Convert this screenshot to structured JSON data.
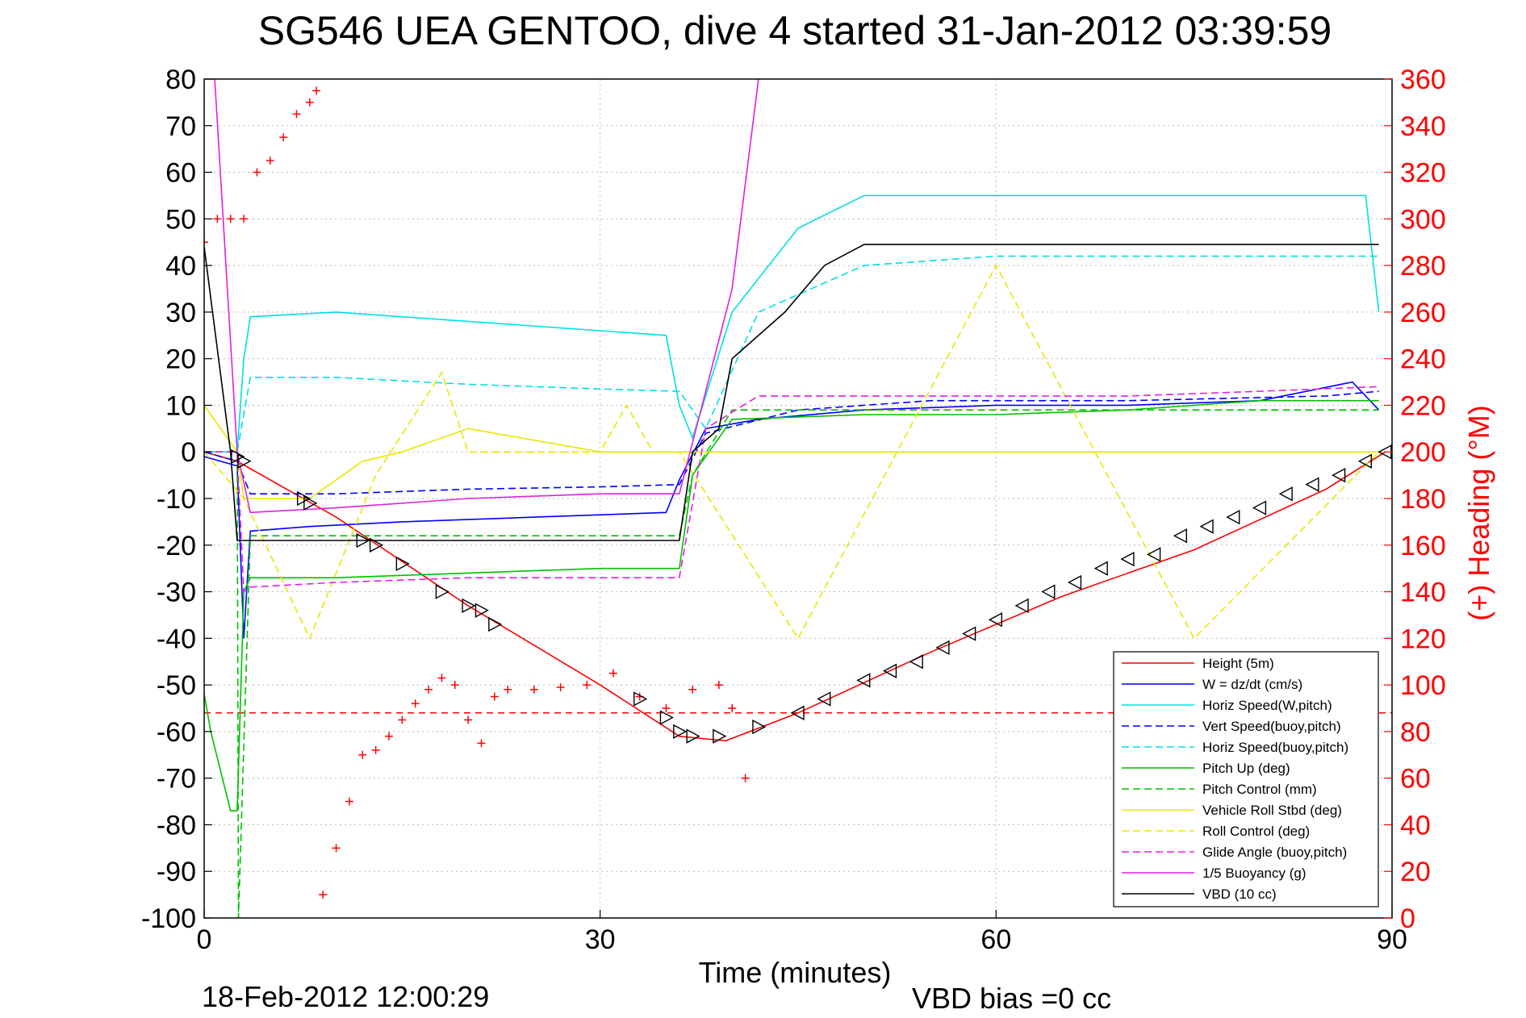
{
  "chart_data": {
    "type": "line",
    "title": "SG546 UEA GENTOO, dive 4 started 31-Jan-2012 03:39:59",
    "xlabel": "Time (minutes)",
    "ylabel_right": "(+) Heading (°M)",
    "xlim": [
      0,
      90
    ],
    "ylim": [
      -100,
      80
    ],
    "ylim_right": [
      0,
      360
    ],
    "x_ticks": [
      0,
      30,
      60,
      90
    ],
    "y_ticks": [
      80,
      70,
      60,
      50,
      40,
      30,
      20,
      10,
      0,
      -10,
      -20,
      -30,
      -40,
      -50,
      -60,
      -70,
      -80,
      -90,
      -100
    ],
    "y_ticks_right": [
      360,
      340,
      320,
      300,
      280,
      260,
      240,
      220,
      200,
      180,
      160,
      140,
      120,
      100,
      80,
      60,
      40,
      20,
      0
    ],
    "grid": true,
    "legend_position": "bottom-right",
    "footer_left": "18-Feb-2012 12:00:29",
    "footer_right": "VBD bias =0 cc",
    "series": [
      {
        "name": "Height (5m)",
        "color": "#ff0000",
        "style": "solid",
        "x": [
          0,
          2.5,
          10,
          20,
          30,
          36,
          39.5,
          45,
          55,
          65,
          75,
          85,
          89.5
        ],
        "y": [
          0,
          -2,
          -14,
          -33,
          -50,
          -61,
          -62,
          -56,
          -43,
          -31,
          -21,
          -8,
          0
        ]
      },
      {
        "name": "W = dz/dt (cm/s)",
        "color": "#0000ff",
        "style": "solid",
        "x": [
          0,
          2.5,
          3,
          3.5,
          8,
          15,
          25,
          35,
          36,
          38,
          42,
          50,
          60,
          70,
          80,
          87,
          89
        ],
        "y": [
          -1,
          -3,
          -40,
          -17,
          -16,
          -15,
          -14,
          -13,
          -6,
          5,
          7,
          9,
          10,
          10,
          11,
          15,
          9
        ]
      },
      {
        "name": "Horiz Speed(W,pitch)",
        "color": "#00e0e0",
        "style": "solid",
        "x": [
          0,
          2.5,
          3,
          3.5,
          10,
          20,
          30,
          35,
          36,
          37,
          40,
          45,
          50,
          60,
          70,
          80,
          88,
          89
        ],
        "y": [
          0,
          0,
          20,
          29,
          30,
          28,
          26,
          25,
          10,
          3,
          30,
          48,
          55,
          55,
          55,
          55,
          55,
          30
        ]
      },
      {
        "name": "Vert Speed(buoy,pitch)",
        "color": "#0000ff",
        "style": "dashed",
        "x": [
          0,
          2.5,
          3.5,
          10,
          20,
          30,
          36,
          38,
          45,
          55,
          70,
          85,
          89
        ],
        "y": [
          0,
          -2,
          -9,
          -9,
          -8,
          -7.5,
          -7,
          4,
          9,
          11,
          11,
          12,
          13
        ]
      },
      {
        "name": "Horiz Speed(buoy,pitch)",
        "color": "#00e0e0",
        "style": "dashed",
        "x": [
          0,
          2.5,
          3.5,
          10,
          20,
          30,
          36,
          38,
          42,
          50,
          60,
          70,
          80,
          89
        ],
        "y": [
          0,
          0,
          16,
          16,
          14.5,
          13.5,
          13,
          5,
          30,
          40,
          42,
          42,
          42,
          42
        ]
      },
      {
        "name": "Pitch Up (deg)",
        "color": "#00c000",
        "style": "solid",
        "x": [
          0,
          0.5,
          2,
          2.5,
          3,
          3.5,
          10,
          20,
          30,
          36,
          37,
          40,
          50,
          60,
          70,
          80,
          89
        ],
        "y": [
          -52,
          -60,
          -77,
          -77,
          -30,
          -27,
          -27,
          -26,
          -25,
          -25,
          -5,
          7,
          8,
          8,
          9,
          11,
          11
        ]
      },
      {
        "name": "Pitch Control (mm)",
        "color": "#00c000",
        "style": "dashed",
        "x": [
          0,
          2.5,
          2.6,
          3.5,
          10,
          20,
          30,
          36,
          37,
          40,
          60,
          80,
          89
        ],
        "y": [
          0,
          0,
          -100,
          -18,
          -18,
          -18,
          -18,
          -18,
          -5,
          9,
          9,
          9,
          9
        ]
      },
      {
        "name": "Vehicle Roll Stbd (deg)",
        "color": "#e8e800",
        "style": "solid",
        "x": [
          0,
          2.5,
          3,
          8,
          12,
          15,
          20,
          30,
          36,
          40,
          45,
          60,
          75,
          89
        ],
        "y": [
          10,
          0,
          -10,
          -10,
          -2,
          0,
          5,
          0,
          0,
          0,
          0,
          0,
          0,
          0
        ]
      },
      {
        "name": "Roll Control (deg)",
        "color": "#e8e800",
        "style": "dashed",
        "x": [
          0,
          3,
          8,
          13,
          18,
          20,
          30,
          32,
          34,
          36,
          45,
          60,
          75,
          89
        ],
        "y": [
          0,
          -10,
          -40,
          -5,
          17,
          0,
          0,
          10,
          0,
          0,
          -40,
          40,
          -40,
          0
        ]
      },
      {
        "name": "Glide Angle (buoy,pitch)",
        "color": "#e020e0",
        "style": "dashed",
        "x": [
          0,
          2.5,
          3,
          3.5,
          10,
          20,
          30,
          36,
          38,
          42,
          50,
          60,
          70,
          80,
          89
        ],
        "y": [
          0,
          0,
          -30,
          -29,
          -28,
          -27,
          -27,
          -27,
          5,
          12,
          12,
          12,
          12,
          13,
          14
        ]
      },
      {
        "name": "1/5 Buoyancy (g)",
        "color": "#e020e0",
        "style": "solid",
        "x": [
          0.8,
          2.5,
          3.5,
          10,
          20,
          30,
          36,
          40,
          42
        ],
        "y": [
          80,
          0,
          -13,
          -12,
          -10,
          -9,
          -9,
          35,
          80
        ]
      },
      {
        "name": "VBD (10 cc)",
        "color": "#000000",
        "style": "solid",
        "x": [
          0,
          2,
          2.5,
          3.5,
          10,
          20,
          30,
          36,
          37,
          39,
          40,
          44,
          47,
          50,
          60,
          70,
          80,
          89
        ],
        "y": [
          44,
          0,
          -19,
          -19,
          -19,
          -19,
          -19,
          -19,
          0,
          5,
          20,
          30,
          40,
          44.5,
          44.5,
          44.5,
          44.5,
          44.5
        ]
      }
    ],
    "heading_series": {
      "name": "(+) Heading (°M)",
      "color": "#ff0000",
      "marker": "+",
      "axis": "right",
      "x": [
        0,
        1,
        2,
        3,
        4,
        5,
        6,
        7,
        8,
        8.5,
        9,
        10,
        11,
        12,
        13,
        14,
        15,
        16,
        17,
        18,
        19,
        20,
        21,
        22,
        23,
        25,
        27,
        29,
        31,
        33,
        35,
        37,
        39,
        40,
        41
      ],
      "y": [
        290,
        300,
        300,
        300,
        320,
        325,
        335,
        345,
        350,
        355,
        10,
        30,
        50,
        70,
        72,
        78,
        85,
        92,
        98,
        103,
        100,
        85,
        75,
        95,
        98,
        98,
        99,
        100,
        105,
        95,
        90,
        98,
        100,
        90,
        60
      ]
    },
    "dive_markers": {
      "name": "triangle markers",
      "color": "#000000",
      "descent_x": [
        2.5,
        3,
        7.5,
        8,
        12,
        13,
        15,
        18,
        20,
        21,
        22,
        33,
        35,
        36,
        37,
        39,
        42
      ],
      "descent_y": [
        -1,
        -2,
        -10,
        -11,
        -19,
        -20,
        -24,
        -30,
        -33,
        -34,
        -37,
        -53,
        -57,
        -60,
        -61,
        -61,
        -59
      ],
      "ascent_x": [
        45,
        47,
        50,
        52,
        54,
        56,
        58,
        60,
        62,
        64,
        66,
        68,
        70,
        72,
        74,
        76,
        78,
        80,
        82,
        84,
        86,
        88,
        89.5
      ],
      "ascent_y": [
        -56,
        -53,
        -49,
        -47,
        -45,
        -42,
        -39,
        -36,
        -33,
        -30,
        -28,
        -25,
        -23,
        -22,
        -18,
        -16,
        -14,
        -12,
        -9,
        -7,
        -5,
        -2,
        0
      ]
    },
    "reference_line": {
      "y": -56,
      "color": "#ff0000",
      "style": "dashed"
    }
  }
}
